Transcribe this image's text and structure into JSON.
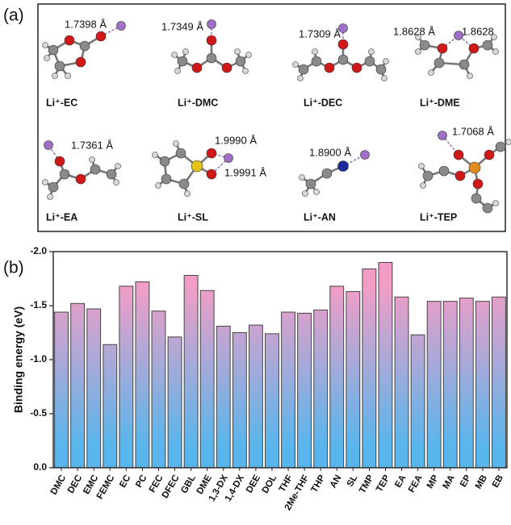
{
  "panel_a": {
    "label": "(a)",
    "molecules": [
      {
        "name": "Li⁺-EC",
        "distances": [
          "1.7398 Å"
        ]
      },
      {
        "name": "Li⁺-DMC",
        "distances": [
          "1.7349 Å"
        ]
      },
      {
        "name": "Li⁺-DEC",
        "distances": [
          "1.7309 Å"
        ]
      },
      {
        "name": "Li⁺-DME",
        "distances": [
          "1.8628 Å",
          "1.8628"
        ]
      },
      {
        "name": "Li⁺-EA",
        "distances": [
          "1.7361 Å"
        ]
      },
      {
        "name": "Li⁺-SL",
        "distances": [
          "1.9990 Å",
          "1.9991 Å"
        ]
      },
      {
        "name": "Li⁺-AN",
        "distances": [
          "1.8900 Å"
        ]
      },
      {
        "name": "Li⁺-TEP",
        "distances": [
          "1.7068 Å"
        ]
      }
    ]
  },
  "chart_data": {
    "type": "bar",
    "panel_label": "(b)",
    "y_label": "Binding energy (eV)",
    "categories": [
      "DMC",
      "DEC",
      "EMC",
      "FEMC",
      "EC",
      "PC",
      "FEC",
      "DFEC",
      "GBL",
      "DME",
      "1,3-DX",
      "1,4-DX",
      "DEE",
      "DOL",
      "THF",
      "2Me-THF",
      "THP",
      "AN",
      "SL",
      "TMP",
      "TEP",
      "EA",
      "FEA",
      "MP",
      "MA",
      "EP",
      "MB",
      "EB"
    ],
    "values": [
      -1.44,
      -1.52,
      -1.47,
      -1.14,
      -1.68,
      -1.72,
      -1.45,
      -1.21,
      -1.78,
      -1.64,
      -1.31,
      -1.25,
      -1.32,
      -1.24,
      -1.44,
      -1.43,
      -1.46,
      -1.68,
      -1.63,
      -1.84,
      -1.9,
      -1.58,
      -1.23,
      -1.54,
      -1.54,
      -1.57,
      -1.54,
      -1.58
    ],
    "color_top": "#f39dc6",
    "color_bottom": "#58b6ec",
    "ylim": [
      0,
      -2
    ],
    "yticks": [
      {
        "value": 0,
        "label": "0.0"
      },
      -0.5,
      {
        "value": -1,
        "label": "-1.0"
      },
      -1.5,
      {
        "value": -2,
        "label": "-2.0"
      }
    ]
  }
}
